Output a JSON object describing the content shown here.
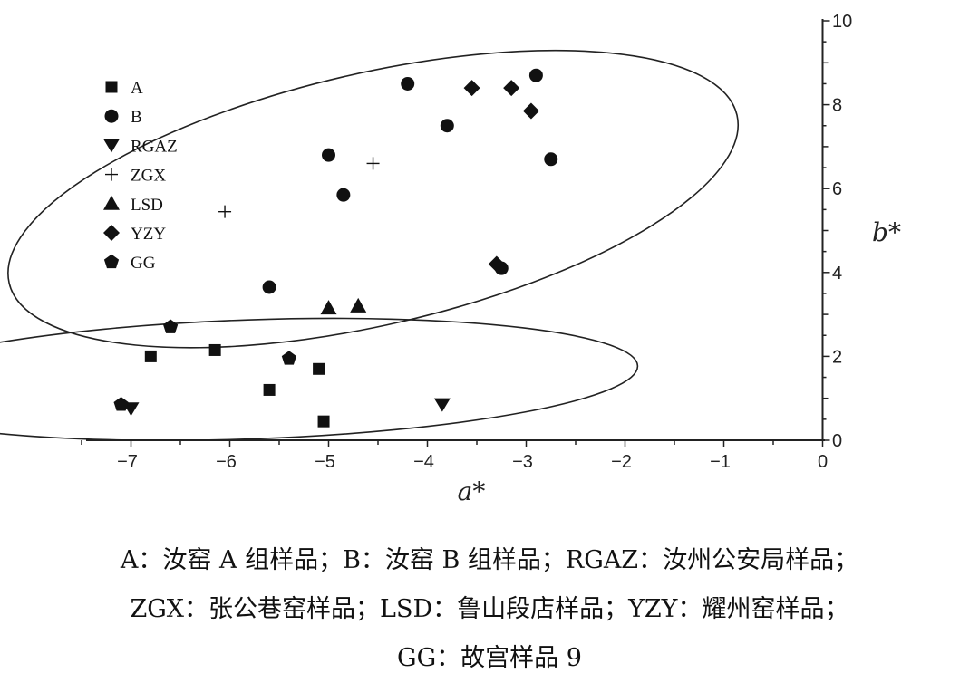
{
  "chart_data": {
    "type": "scatter",
    "xlabel": "a*",
    "ylabel": "b*",
    "xlim": [
      -7.5,
      0
    ],
    "ylim": [
      0,
      10
    ],
    "x_ticks": [
      -7,
      -6,
      -5,
      -4,
      -3,
      -2,
      -1,
      0
    ],
    "y_ticks": [
      0,
      2,
      4,
      6,
      8,
      10
    ],
    "grid": false,
    "legend_position": "top-left",
    "series": [
      {
        "name": "A",
        "marker": "square",
        "points": [
          [
            -6.8,
            2.0
          ],
          [
            -6.15,
            2.15
          ],
          [
            -5.6,
            1.2
          ],
          [
            -5.1,
            1.7
          ],
          [
            -5.05,
            0.45
          ]
        ]
      },
      {
        "name": "B",
        "marker": "circle",
        "points": [
          [
            -4.2,
            8.5
          ],
          [
            -2.9,
            8.7
          ],
          [
            -3.8,
            7.5
          ],
          [
            -5.0,
            6.8
          ],
          [
            -2.75,
            6.7
          ],
          [
            -4.85,
            5.85
          ],
          [
            -3.25,
            4.1
          ],
          [
            -5.6,
            3.65
          ]
        ]
      },
      {
        "name": "RGAZ",
        "marker": "triangle-down",
        "points": [
          [
            -7.0,
            0.75
          ],
          [
            -3.85,
            0.85
          ]
        ]
      },
      {
        "name": "ZGX",
        "marker": "plus",
        "points": [
          [
            -4.55,
            6.6
          ],
          [
            -6.05,
            5.45
          ]
        ]
      },
      {
        "name": "LSD",
        "marker": "triangle-up",
        "points": [
          [
            -5.0,
            3.15
          ],
          [
            -4.7,
            3.2
          ]
        ]
      },
      {
        "name": "YZY",
        "marker": "diamond",
        "points": [
          [
            -3.55,
            8.4
          ],
          [
            -3.15,
            8.4
          ],
          [
            -2.95,
            7.85
          ],
          [
            -3.3,
            4.2
          ]
        ]
      },
      {
        "name": "GG",
        "marker": "pentagon",
        "points": [
          [
            -6.6,
            2.7
          ],
          [
            -5.4,
            1.95
          ],
          [
            -7.1,
            0.85
          ]
        ]
      }
    ],
    "ellipses": [
      {
        "center": [
          -4.55,
          5.75
        ],
        "rx": 3.78,
        "ry": 3.0,
        "rotation_deg": -13
      },
      {
        "center": [
          -5.8,
          1.45
        ],
        "rx": 3.93,
        "ry": 1.42,
        "rotation_deg": -2
      }
    ]
  },
  "caption": {
    "lines": [
      "A：汝窑 A 组样品；B：汝窑 B 组样品；RGAZ：汝州公安局样品；",
      "ZGX：张公巷窑样品；LSD：鲁山段店样品；YZY：耀州窑样品；",
      "GG：故宫样品 9"
    ]
  }
}
